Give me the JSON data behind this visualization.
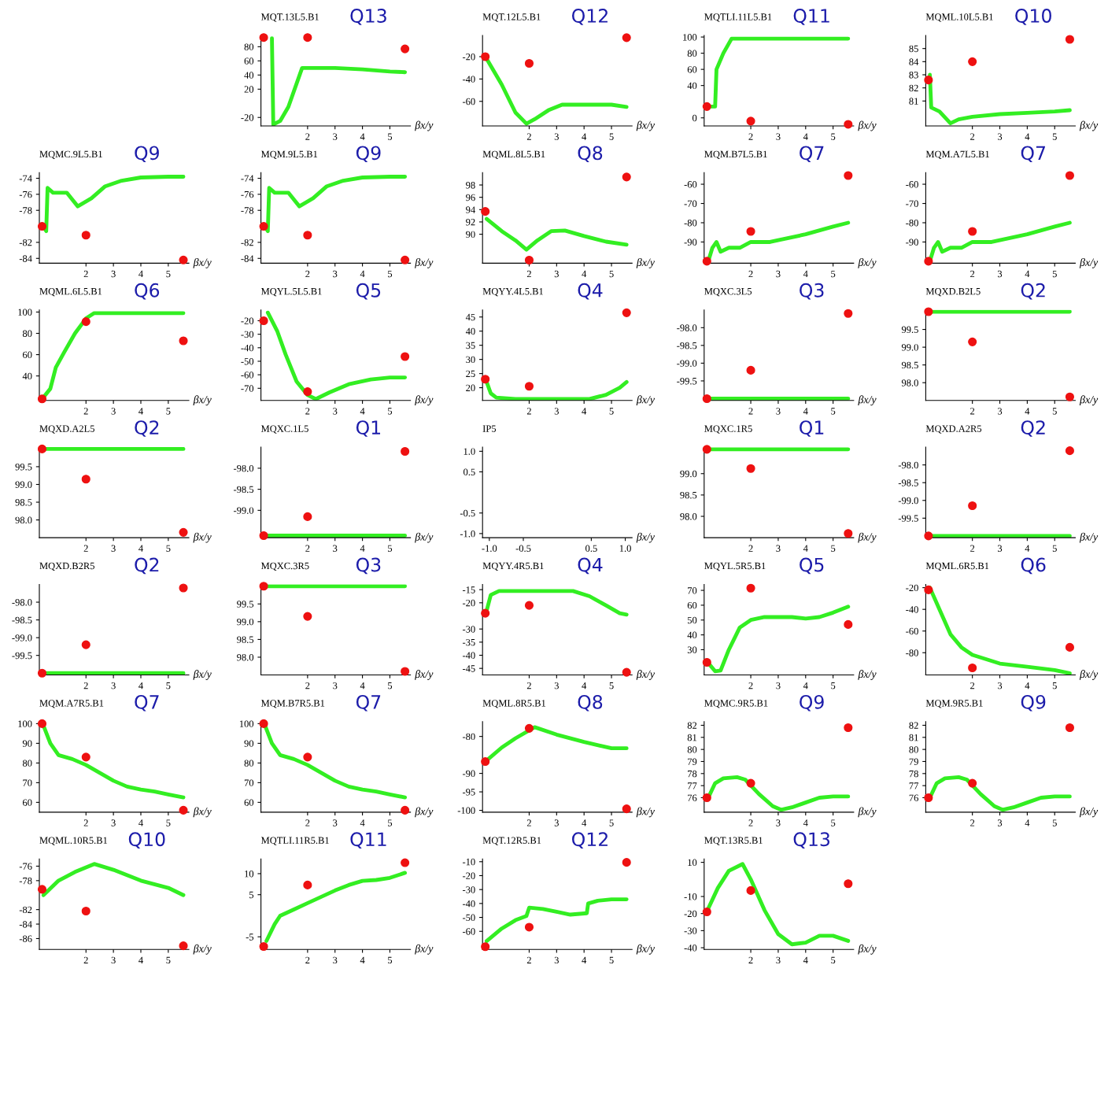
{
  "chart_data": [
    {
      "type": "line",
      "title": "MQT.13L5.B1",
      "subtitle": "Q13",
      "xlabel": "βx/y",
      "xlim": [
        0.3,
        5.75
      ],
      "ylim": [
        -32,
        96
      ],
      "xticks": [
        2,
        3,
        4,
        5
      ],
      "yticks": [
        -20,
        20,
        40,
        60,
        80
      ],
      "series": [
        {
          "color": "#33ee22",
          "x": [
            0.7,
            0.75,
            1,
            1.3,
            1.8,
            2,
            3,
            4,
            5,
            5.55
          ],
          "values": [
            92,
            -30,
            -25,
            -5,
            50,
            50,
            50,
            48,
            45,
            44
          ]
        },
        {
          "type": "scatter",
          "marker": "circle",
          "color": "#ee1111",
          "x": [
            0.4,
            2,
            5.55
          ],
          "values": [
            93,
            93,
            77
          ]
        }
      ]
    },
    {
      "type": "line",
      "title": "MQT.12L5.B1",
      "subtitle": "Q12",
      "xlabel": "βx/y",
      "xlim": [
        0.3,
        5.75
      ],
      "ylim": [
        -82,
        -1
      ],
      "xticks": [
        2,
        3,
        4,
        5
      ],
      "yticks": [
        -20,
        -40,
        -60
      ],
      "series": [
        {
          "color": "#33ee22",
          "x": [
            0.45,
            1,
            1.5,
            1.9,
            2.2,
            2.7,
            3.2,
            4,
            5,
            5.55
          ],
          "values": [
            -22,
            -45,
            -70,
            -80,
            -76,
            -68,
            -63,
            -63,
            -63,
            -65
          ]
        },
        {
          "type": "scatter",
          "marker": "circle",
          "color": "#ee1111",
          "x": [
            0.4,
            2,
            5.55
          ],
          "values": [
            -20,
            -26,
            -3
          ]
        }
      ]
    },
    {
      "type": "line",
      "title": "MQTLI.11L5.B1",
      "subtitle": "Q11",
      "xlabel": "βx/y",
      "xlim": [
        0.3,
        5.75
      ],
      "ylim": [
        -10,
        102
      ],
      "xticks": [
        2,
        3,
        4,
        5
      ],
      "yticks": [
        0,
        40,
        60,
        80,
        100
      ],
      "series": [
        {
          "color": "#33ee22",
          "x": [
            0.45,
            0.7,
            0.75,
            1,
            1.3,
            2,
            3,
            4,
            5,
            5.55
          ],
          "values": [
            14,
            14,
            60,
            80,
            98,
            98,
            98,
            98,
            98,
            98
          ]
        },
        {
          "type": "scatter",
          "marker": "circle",
          "color": "#ee1111",
          "x": [
            0.4,
            2,
            5.55
          ],
          "values": [
            14,
            -4,
            -8
          ]
        }
      ]
    },
    {
      "type": "line",
      "title": "MQML.10L5.B1",
      "subtitle": "Q10",
      "xlabel": "βx/y",
      "xlim": [
        0.3,
        5.75
      ],
      "ylim": [
        79.1,
        86
      ],
      "xticks": [
        2,
        3,
        4,
        5
      ],
      "yticks": [
        81,
        82,
        83,
        84,
        85
      ],
      "series": [
        {
          "color": "#33ee22",
          "x": [
            0.45,
            0.5,
            0.8,
            1.2,
            1.5,
            2,
            3,
            4,
            5,
            5.55
          ],
          "values": [
            83,
            80.5,
            80.2,
            79.3,
            79.6,
            79.8,
            80,
            80.1,
            80.2,
            80.3
          ]
        },
        {
          "type": "scatter",
          "marker": "circle",
          "color": "#ee1111",
          "x": [
            0.4,
            2,
            5.55
          ],
          "values": [
            82.6,
            84,
            85.7
          ]
        }
      ]
    },
    {
      "type": "line",
      "title": "MQMC.9L5.B1",
      "subtitle": "Q9",
      "xlabel": "βx/y",
      "xlim": [
        0.3,
        5.75
      ],
      "ylim": [
        -84.6,
        -73.3
      ],
      "xticks": [
        2,
        3,
        4,
        5
      ],
      "yticks": [
        -74,
        -76,
        -78,
        -82,
        -84
      ],
      "series": [
        {
          "color": "#33ee22",
          "x": [
            0.45,
            0.55,
            0.6,
            0.8,
            1.3,
            1.7,
            2.2,
            2.7,
            3.3,
            4,
            5,
            5.55
          ],
          "values": [
            -80,
            -80.6,
            -75.2,
            -75.8,
            -75.8,
            -77.5,
            -76.5,
            -75,
            -74.3,
            -73.9,
            -73.8,
            -73.8
          ]
        },
        {
          "type": "scatter",
          "marker": "circle",
          "color": "#ee1111",
          "x": [
            0.4,
            2,
            5.55
          ],
          "values": [
            -80,
            -81.1,
            -84.2
          ]
        }
      ]
    },
    {
      "type": "line",
      "title": "MQM.9L5.B1",
      "subtitle": "Q9",
      "xlabel": "βx/y",
      "xlim": [
        0.3,
        5.75
      ],
      "ylim": [
        -84.6,
        -73.3
      ],
      "xticks": [
        2,
        3,
        4,
        5
      ],
      "yticks": [
        -74,
        -76,
        -78,
        -82,
        -84
      ],
      "series": [
        {
          "color": "#33ee22",
          "x": [
            0.45,
            0.55,
            0.6,
            0.8,
            1.3,
            1.7,
            2.2,
            2.7,
            3.3,
            4,
            5,
            5.55
          ],
          "values": [
            -80,
            -80.6,
            -75.2,
            -75.8,
            -75.8,
            -77.5,
            -76.5,
            -75,
            -74.3,
            -73.9,
            -73.8,
            -73.8
          ]
        },
        {
          "type": "scatter",
          "marker": "circle",
          "color": "#ee1111",
          "x": [
            0.4,
            2,
            5.55
          ],
          "values": [
            -80,
            -81.1,
            -84.2
          ]
        }
      ]
    },
    {
      "type": "line",
      "title": "MQML.8L5.B1",
      "subtitle": "Q8",
      "xlabel": "βx/y",
      "xlim": [
        0.3,
        5.75
      ],
      "ylim": [
        85.3,
        100
      ],
      "xticks": [
        2,
        3,
        4,
        5
      ],
      "yticks": [
        90,
        92,
        94,
        96,
        98
      ],
      "series": [
        {
          "color": "#33ee22",
          "x": [
            0.45,
            1,
            1.5,
            1.9,
            2.3,
            2.8,
            3.3,
            4,
            4.8,
            5.55
          ],
          "values": [
            92.5,
            90.5,
            89,
            87.5,
            89,
            90.5,
            90.6,
            89.7,
            88.8,
            88.3
          ]
        },
        {
          "type": "scatter",
          "marker": "circle",
          "color": "#ee1111",
          "x": [
            0.4,
            2,
            5.55
          ],
          "values": [
            93.7,
            85.8,
            99.3
          ]
        }
      ]
    },
    {
      "type": "line",
      "title": "MQM.B7L5.B1",
      "subtitle": "Q7",
      "xlabel": "βx/y",
      "xlim": [
        0.3,
        5.75
      ],
      "ylim": [
        -101,
        -54
      ],
      "xticks": [
        2,
        3,
        4,
        5
      ],
      "yticks": [
        -60,
        -70,
        -80,
        -90
      ],
      "series": [
        {
          "color": "#33ee22",
          "x": [
            0.45,
            0.6,
            0.75,
            0.9,
            1.2,
            1.6,
            2,
            2.7,
            3,
            4,
            5,
            5.55
          ],
          "values": [
            -100,
            -93,
            -90,
            -95,
            -93,
            -93,
            -90,
            -90,
            -89,
            -86,
            -82,
            -80
          ]
        },
        {
          "type": "scatter",
          "marker": "circle",
          "color": "#ee1111",
          "x": [
            0.4,
            2,
            5.55
          ],
          "values": [
            -100,
            -84.5,
            -55.5
          ]
        }
      ]
    },
    {
      "type": "line",
      "title": "MQM.A7L5.B1",
      "subtitle": "Q7",
      "xlabel": "βx/y",
      "xlim": [
        0.3,
        5.75
      ],
      "ylim": [
        -101,
        -54
      ],
      "xticks": [
        2,
        3,
        4,
        5
      ],
      "yticks": [
        -60,
        -70,
        -80,
        -90
      ],
      "series": [
        {
          "color": "#33ee22",
          "x": [
            0.45,
            0.6,
            0.75,
            0.9,
            1.2,
            1.6,
            2,
            2.7,
            3,
            4,
            5,
            5.55
          ],
          "values": [
            -100,
            -93,
            -90,
            -95,
            -93,
            -93,
            -90,
            -90,
            -89,
            -86,
            -82,
            -80
          ]
        },
        {
          "type": "scatter",
          "marker": "circle",
          "color": "#ee1111",
          "x": [
            0.4,
            2,
            5.55
          ],
          "values": [
            -100,
            -84.5,
            -55.5
          ]
        }
      ]
    },
    {
      "type": "line",
      "title": "MQML.6L5.B1",
      "subtitle": "Q6",
      "xlabel": "βx/y",
      "xlim": [
        0.3,
        5.75
      ],
      "ylim": [
        17,
        102
      ],
      "xticks": [
        2,
        3,
        4,
        5
      ],
      "yticks": [
        40,
        60,
        80,
        100
      ],
      "series": [
        {
          "color": "#33ee22",
          "x": [
            0.45,
            0.7,
            0.9,
            1.2,
            1.6,
            2,
            2.3,
            3,
            4,
            5,
            5.55
          ],
          "values": [
            20,
            28,
            48,
            62,
            80,
            94,
            99,
            99,
            99,
            99,
            99
          ]
        },
        {
          "type": "scatter",
          "marker": "circle",
          "color": "#ee1111",
          "x": [
            0.4,
            2,
            5.55
          ],
          "values": [
            18.5,
            91,
            73
          ]
        }
      ]
    },
    {
      "type": "line",
      "title": "MQYL.5L5.B1",
      "subtitle": "Q5",
      "xlabel": "βx/y",
      "xlim": [
        0.3,
        5.75
      ],
      "ylim": [
        -79,
        -12
      ],
      "xticks": [
        2,
        3,
        4,
        5
      ],
      "yticks": [
        -20,
        -30,
        -40,
        -50,
        -60,
        -70
      ],
      "series": [
        {
          "color": "#33ee22",
          "x": [
            0.55,
            0.9,
            1.2,
            1.6,
            2,
            2.3,
            2.8,
            3.5,
            4.3,
            5,
            5.55
          ],
          "values": [
            -14,
            -28,
            -45,
            -65,
            -75,
            -78,
            -73,
            -67,
            -63.5,
            -62,
            -62
          ]
        },
        {
          "type": "scatter",
          "marker": "circle",
          "color": "#ee1111",
          "x": [
            0.4,
            2,
            5.55
          ],
          "values": [
            -20,
            -72.5,
            -46.5
          ]
        }
      ]
    },
    {
      "type": "line",
      "title": "MQYY.4L5.B1",
      "subtitle": "Q4",
      "xlabel": "βx/y",
      "xlim": [
        0.3,
        5.75
      ],
      "ylim": [
        15.5,
        47.5
      ],
      "xticks": [
        2,
        3,
        4,
        5
      ],
      "yticks": [
        20,
        25,
        30,
        35,
        40,
        45
      ],
      "series": [
        {
          "color": "#33ee22",
          "x": [
            0.45,
            0.6,
            0.8,
            1.5,
            4.2,
            4.8,
            5.3,
            5.55
          ],
          "values": [
            22,
            18,
            16.5,
            16,
            16,
            17.5,
            20,
            22
          ]
        },
        {
          "type": "scatter",
          "marker": "circle",
          "color": "#ee1111",
          "x": [
            0.4,
            2,
            5.55
          ],
          "values": [
            23,
            20.5,
            46.5
          ]
        }
      ]
    },
    {
      "type": "line",
      "title": "MQXC.3L5",
      "subtitle": "Q3",
      "xlabel": "βx/y",
      "xlim": [
        0.3,
        5.75
      ],
      "ylim": [
        -100.05,
        -97.5
      ],
      "xticks": [
        2,
        3,
        4,
        5
      ],
      "yticks": [
        {
          "value": -98,
          "label": "-98.0"
        },
        -98.5,
        {
          "value": -99,
          "label": "-99.0"
        },
        -99.5
      ],
      "series": [
        {
          "color": "#33ee22",
          "x": [
            0.45,
            5.55
          ],
          "values": [
            -100,
            -100
          ]
        },
        {
          "type": "scatter",
          "marker": "circle",
          "color": "#ee1111",
          "x": [
            0.4,
            2,
            5.55
          ],
          "values": [
            -100,
            -99.2,
            -97.6
          ]
        }
      ]
    },
    {
      "type": "line",
      "title": "MQXD.B2L5",
      "subtitle": "Q2",
      "xlabel": "βx/y",
      "xlim": [
        0.3,
        5.75
      ],
      "ylim": [
        97.5,
        100.05
      ],
      "xticks": [
        2,
        3,
        4,
        5
      ],
      "yticks": [
        99.5,
        {
          "value": 99,
          "label": "99.0"
        },
        98.5,
        {
          "value": 98,
          "label": "98.0"
        }
      ],
      "series": [
        {
          "color": "#33ee22",
          "x": [
            0.45,
            5.55
          ],
          "values": [
            100,
            100
          ]
        },
        {
          "type": "scatter",
          "marker": "circle",
          "color": "#ee1111",
          "x": [
            0.4,
            2,
            5.55
          ],
          "values": [
            100,
            99.15,
            97.6
          ]
        }
      ]
    },
    {
      "type": "line",
      "title": "MQXD.A2L5",
      "subtitle": "Q2",
      "xlabel": "βx/y",
      "xlim": [
        0.3,
        5.75
      ],
      "ylim": [
        97.5,
        100.05
      ],
      "xticks": [
        2,
        3,
        4,
        5
      ],
      "yticks": [
        99.5,
        {
          "value": 99,
          "label": "99.0"
        },
        98.5,
        {
          "value": 98,
          "label": "98.0"
        }
      ],
      "series": [
        {
          "color": "#33ee22",
          "x": [
            0.45,
            5.55
          ],
          "values": [
            100,
            100
          ]
        },
        {
          "type": "scatter",
          "marker": "circle",
          "color": "#ee1111",
          "x": [
            0.4,
            2,
            5.55
          ],
          "values": [
            100,
            99.15,
            97.65
          ]
        }
      ]
    },
    {
      "type": "line",
      "title": "MQXC.1L5",
      "subtitle": "Q1",
      "xlabel": "βx/y",
      "xlim": [
        0.3,
        5.75
      ],
      "ylim": [
        -99.65,
        -97.5
      ],
      "xticks": [
        2,
        3,
        4,
        5
      ],
      "yticks": [
        {
          "value": -98,
          "label": "-98.0"
        },
        -98.5,
        {
          "value": -99,
          "label": "-99.0"
        }
      ],
      "series": [
        {
          "color": "#33ee22",
          "x": [
            0.45,
            5.55
          ],
          "values": [
            -99.6,
            -99.6
          ]
        },
        {
          "type": "scatter",
          "marker": "circle",
          "color": "#ee1111",
          "x": [
            0.4,
            2,
            5.55
          ],
          "values": [
            -99.6,
            -99.15,
            -97.6
          ]
        }
      ]
    },
    {
      "type": "line",
      "title": "IP5",
      "xlabel": "βx/y",
      "xlim": [
        -1.1,
        1.1
      ],
      "ylim": [
        -1.1,
        1.1
      ],
      "xticks": [
        {
          "value": -1,
          "label": "-1.0"
        },
        -0.5,
        0.5,
        {
          "value": 1,
          "label": "1.0"
        }
      ],
      "yticks": [
        {
          "value": 1,
          "label": "1.0"
        },
        0.5,
        -0.5,
        {
          "value": -1,
          "label": "-1.0"
        }
      ]
    },
    {
      "type": "line",
      "title": "MQXC.1R5",
      "subtitle": "Q1",
      "xlabel": "βx/y",
      "xlim": [
        0.3,
        5.75
      ],
      "ylim": [
        97.5,
        99.62
      ],
      "xticks": [
        2,
        3,
        4,
        5
      ],
      "yticks": [
        {
          "value": 99,
          "label": "99.0"
        },
        98.5,
        {
          "value": 98,
          "label": "98.0"
        }
      ],
      "series": [
        {
          "color": "#33ee22",
          "x": [
            0.45,
            5.55
          ],
          "values": [
            99.57,
            99.57
          ]
        },
        {
          "type": "scatter",
          "marker": "circle",
          "color": "#ee1111",
          "x": [
            0.4,
            2,
            5.55
          ],
          "values": [
            99.57,
            99.12,
            97.6
          ]
        }
      ]
    },
    {
      "type": "line",
      "title": "MQXD.A2R5",
      "subtitle": "Q2",
      "xlabel": "βx/y",
      "xlim": [
        0.3,
        5.75
      ],
      "ylim": [
        -100.05,
        -97.5
      ],
      "xticks": [
        2,
        3,
        4,
        5
      ],
      "yticks": [
        {
          "value": -98,
          "label": "-98.0"
        },
        -98.5,
        {
          "value": -99,
          "label": "-99.0"
        },
        -99.5
      ],
      "series": [
        {
          "color": "#33ee22",
          "x": [
            0.45,
            5.55
          ],
          "values": [
            -100,
            -100
          ]
        },
        {
          "type": "scatter",
          "marker": "circle",
          "color": "#ee1111",
          "x": [
            0.4,
            2,
            5.55
          ],
          "values": [
            -100,
            -99.15,
            -97.6
          ]
        }
      ]
    },
    {
      "type": "line",
      "title": "MQXD.B2R5",
      "subtitle": "Q2",
      "xlabel": "βx/y",
      "xlim": [
        0.3,
        5.75
      ],
      "ylim": [
        -100.05,
        -97.5
      ],
      "xticks": [
        2,
        3,
        4,
        5
      ],
      "yticks": [
        {
          "value": -98,
          "label": "-98.0"
        },
        -98.5,
        {
          "value": -99,
          "label": "-99.0"
        },
        -99.5
      ],
      "series": [
        {
          "color": "#33ee22",
          "x": [
            0.45,
            5.55
          ],
          "values": [
            -100,
            -100
          ]
        },
        {
          "type": "scatter",
          "marker": "circle",
          "color": "#ee1111",
          "x": [
            0.4,
            2,
            5.55
          ],
          "values": [
            -100,
            -99.2,
            -97.6
          ]
        }
      ]
    },
    {
      "type": "line",
      "title": "MQXC.3R5",
      "subtitle": "Q3",
      "xlabel": "βx/y",
      "xlim": [
        0.3,
        5.75
      ],
      "ylim": [
        97.5,
        100.05
      ],
      "xticks": [
        2,
        3,
        4,
        5
      ],
      "yticks": [
        99.5,
        {
          "value": 99,
          "label": "99.0"
        },
        98.5,
        {
          "value": 98,
          "label": "98.0"
        }
      ],
      "series": [
        {
          "color": "#33ee22",
          "x": [
            0.45,
            5.55
          ],
          "values": [
            100,
            100
          ]
        },
        {
          "type": "scatter",
          "marker": "circle",
          "color": "#ee1111",
          "x": [
            0.4,
            2,
            5.55
          ],
          "values": [
            100,
            99.15,
            97.6
          ]
        }
      ]
    },
    {
      "type": "line",
      "title": "MQYY.4R5.B1",
      "subtitle": "Q4",
      "xlabel": "βx/y",
      "xlim": [
        0.3,
        5.75
      ],
      "ylim": [
        -47.5,
        -13
      ],
      "xticks": [
        2,
        3,
        4,
        5
      ],
      "yticks": [
        -15,
        -20,
        -30,
        -35,
        -40,
        -45
      ],
      "series": [
        {
          "color": "#33ee22",
          "x": [
            0.45,
            0.6,
            0.9,
            2,
            3.6,
            4.2,
            4.8,
            5.3,
            5.55
          ],
          "values": [
            -23,
            -17,
            -15.5,
            -15.5,
            -15.5,
            -17.5,
            -21,
            -24,
            -24.5
          ]
        },
        {
          "type": "scatter",
          "marker": "circle",
          "color": "#ee1111",
          "x": [
            0.4,
            2,
            5.55
          ],
          "values": [
            -24,
            -21,
            -46.5
          ]
        }
      ]
    },
    {
      "type": "line",
      "title": "MQYL.5R5.B1",
      "subtitle": "Q5",
      "xlabel": "βx/y",
      "xlim": [
        0.3,
        5.75
      ],
      "ylim": [
        13,
        74
      ],
      "xticks": [
        2,
        3,
        4,
        5
      ],
      "yticks": [
        30,
        40,
        50,
        60,
        70
      ],
      "series": [
        {
          "color": "#33ee22",
          "x": [
            0.45,
            0.7,
            0.9,
            1.2,
            1.6,
            2,
            2.5,
            3.5,
            4,
            4.5,
            5,
            5.55
          ],
          "values": [
            21,
            15.5,
            16,
            30,
            45,
            50,
            52,
            52,
            51,
            52,
            55,
            59
          ]
        },
        {
          "type": "scatter",
          "marker": "circle",
          "color": "#ee1111",
          "x": [
            0.4,
            2,
            5.55
          ],
          "values": [
            21.5,
            71.5,
            47
          ]
        }
      ]
    },
    {
      "type": "line",
      "title": "MQML.6R5.B1",
      "subtitle": "Q6",
      "xlabel": "βx/y",
      "xlim": [
        0.3,
        5.75
      ],
      "ylim": [
        -100.5,
        -17
      ],
      "xticks": [
        2,
        3,
        4,
        5
      ],
      "yticks": [
        -20,
        -40,
        -60,
        -80
      ],
      "series": [
        {
          "color": "#33ee22",
          "x": [
            0.45,
            0.8,
            1.2,
            1.6,
            2,
            2.5,
            3,
            4,
            5,
            5.55
          ],
          "values": [
            -20,
            -40,
            -63,
            -75,
            -82,
            -86,
            -90,
            -93,
            -96,
            -99
          ]
        },
        {
          "type": "scatter",
          "marker": "circle",
          "color": "#ee1111",
          "x": [
            0.4,
            2,
            5.55
          ],
          "values": [
            -22,
            -94,
            -75
          ]
        }
      ]
    },
    {
      "type": "line",
      "title": "MQM.A7R5.B1",
      "subtitle": "Q7",
      "xlabel": "βx/y",
      "xlim": [
        0.3,
        5.75
      ],
      "ylim": [
        55,
        101
      ],
      "xticks": [
        2,
        3,
        4,
        5
      ],
      "yticks": [
        60,
        70,
        80,
        90,
        100
      ],
      "series": [
        {
          "color": "#33ee22",
          "x": [
            0.45,
            0.7,
            1,
            1.5,
            2,
            2.5,
            3,
            3.5,
            4,
            4.5,
            5,
            5.55
          ],
          "values": [
            99,
            90,
            84,
            82,
            79,
            75,
            71,
            68,
            66.5,
            65.5,
            64,
            62.5
          ]
        },
        {
          "type": "scatter",
          "marker": "circle",
          "color": "#ee1111",
          "x": [
            0.4,
            2,
            5.55
          ],
          "values": [
            100,
            83,
            56
          ]
        }
      ]
    },
    {
      "type": "line",
      "title": "MQM.B7R5.B1",
      "subtitle": "Q7",
      "xlabel": "βx/y",
      "xlim": [
        0.3,
        5.75
      ],
      "ylim": [
        55,
        101
      ],
      "xticks": [
        2,
        3,
        4,
        5
      ],
      "yticks": [
        60,
        70,
        80,
        90,
        100
      ],
      "series": [
        {
          "color": "#33ee22",
          "x": [
            0.45,
            0.7,
            1,
            1.5,
            2,
            2.5,
            3,
            3.5,
            4,
            4.5,
            5,
            5.55
          ],
          "values": [
            99,
            90,
            84,
            82,
            79,
            75,
            71,
            68,
            66.5,
            65.5,
            64,
            62.5
          ]
        },
        {
          "type": "scatter",
          "marker": "circle",
          "color": "#ee1111",
          "x": [
            0.4,
            2,
            5.55
          ],
          "values": [
            100,
            83,
            56
          ]
        }
      ]
    },
    {
      "type": "line",
      "title": "MQML.8R5.B1",
      "subtitle": "Q8",
      "xlabel": "βx/y",
      "xlim": [
        0.3,
        5.75
      ],
      "ylim": [
        -100.5,
        -76
      ],
      "xticks": [
        2,
        3,
        4,
        5
      ],
      "yticks": [
        -80,
        -90,
        -95,
        -100
      ],
      "series": [
        {
          "color": "#33ee22",
          "x": [
            0.45,
            1,
            1.5,
            2.2,
            3,
            4,
            5,
            5.55
          ],
          "values": [
            -86.5,
            -83,
            -80.5,
            -77.5,
            -79.5,
            -81.5,
            -83.2,
            -83.2
          ]
        },
        {
          "type": "scatter",
          "marker": "circle",
          "color": "#ee1111",
          "x": [
            0.4,
            2,
            5.55
          ],
          "values": [
            -86.8,
            -77.8,
            -99.6
          ]
        }
      ]
    },
    {
      "type": "line",
      "title": "MQMC.9R5.B1",
      "subtitle": "Q9",
      "xlabel": "βx/y",
      "xlim": [
        0.3,
        5.75
      ],
      "ylim": [
        74.8,
        82.3
      ],
      "xticks": [
        2,
        3,
        4,
        5
      ],
      "yticks": [
        76,
        77,
        78,
        79,
        80,
        81,
        82
      ],
      "series": [
        {
          "color": "#33ee22",
          "x": [
            0.45,
            0.7,
            1,
            1.5,
            1.8,
            2.3,
            2.8,
            3.1,
            3.5,
            4,
            4.5,
            5,
            5.55
          ],
          "values": [
            76,
            77.2,
            77.6,
            77.7,
            77.5,
            76.3,
            75.3,
            75,
            75.2,
            75.6,
            76,
            76.1,
            76.1
          ]
        },
        {
          "type": "scatter",
          "marker": "circle",
          "color": "#ee1111",
          "x": [
            0.4,
            2,
            5.55
          ],
          "values": [
            76,
            77.2,
            81.8
          ]
        }
      ]
    },
    {
      "type": "line",
      "title": "MQM.9R5.B1",
      "subtitle": "Q9",
      "xlabel": "βx/y",
      "xlim": [
        0.3,
        5.75
      ],
      "ylim": [
        74.8,
        82.3
      ],
      "xticks": [
        2,
        3,
        4,
        5
      ],
      "yticks": [
        76,
        77,
        78,
        79,
        80,
        81,
        82
      ],
      "series": [
        {
          "color": "#33ee22",
          "x": [
            0.45,
            0.7,
            1,
            1.5,
            1.8,
            2.3,
            2.8,
            3.1,
            3.5,
            4,
            4.5,
            5,
            5.55
          ],
          "values": [
            76,
            77.2,
            77.6,
            77.7,
            77.5,
            76.3,
            75.3,
            75,
            75.2,
            75.6,
            76,
            76.1,
            76.1
          ]
        },
        {
          "type": "scatter",
          "marker": "circle",
          "color": "#ee1111",
          "x": [
            0.4,
            2,
            5.55
          ],
          "values": [
            76,
            77.2,
            81.8
          ]
        }
      ]
    },
    {
      "type": "line",
      "title": "MQML.10R5.B1",
      "subtitle": "Q10",
      "xlabel": "βx/y",
      "xlim": [
        0.3,
        5.75
      ],
      "ylim": [
        -87.5,
        -75
      ],
      "xticks": [
        2,
        3,
        4,
        5
      ],
      "yticks": [
        -76,
        -78,
        -82,
        -84,
        -86
      ],
      "series": [
        {
          "color": "#33ee22",
          "x": [
            0.45,
            1,
            1.6,
            2.3,
            3,
            4,
            5,
            5.55
          ],
          "values": [
            -80,
            -78,
            -76.8,
            -75.7,
            -76.5,
            -78,
            -79,
            -80
          ]
        },
        {
          "type": "scatter",
          "marker": "circle",
          "color": "#ee1111",
          "x": [
            0.4,
            2,
            5.55
          ],
          "values": [
            -79.2,
            -82.2,
            -87
          ]
        }
      ]
    },
    {
      "type": "line",
      "title": "MQTLI.11R5.B1",
      "subtitle": "Q11",
      "xlabel": "βx/y",
      "xlim": [
        0.3,
        5.75
      ],
      "ylim": [
        -8,
        13.5
      ],
      "xticks": [
        2,
        3,
        4,
        5
      ],
      "yticks": [
        10,
        5,
        -5
      ],
      "series": [
        {
          "color": "#33ee22",
          "x": [
            0.5,
            0.8,
            1,
            1.5,
            2,
            2.5,
            3,
            3.5,
            4,
            4.5,
            5,
            5.55
          ],
          "values": [
            -6,
            -2,
            0,
            1.5,
            3,
            4.5,
            6,
            7.3,
            8.3,
            8.5,
            9,
            10.2
          ]
        },
        {
          "type": "scatter",
          "marker": "circle",
          "color": "#ee1111",
          "x": [
            0.4,
            2,
            5.55
          ],
          "values": [
            -7.3,
            7.3,
            12.6
          ]
        }
      ]
    },
    {
      "type": "line",
      "title": "MQT.12R5.B1",
      "subtitle": "Q12",
      "xlabel": "βx/y",
      "xlim": [
        0.3,
        5.75
      ],
      "ylim": [
        -73,
        -8
      ],
      "xticks": [
        2,
        3,
        4,
        5
      ],
      "yticks": [
        -10,
        -20,
        -30,
        -40,
        -50,
        -60
      ],
      "series": [
        {
          "color": "#33ee22",
          "x": [
            0.45,
            1,
            1.5,
            1.9,
            2,
            2.5,
            3,
            3.5,
            4.1,
            4.15,
            4.5,
            5,
            5.55
          ],
          "values": [
            -67,
            -58,
            -52,
            -49,
            -43,
            -44,
            -46,
            -48,
            -47,
            -40,
            -38,
            -37,
            -37
          ]
        },
        {
          "type": "scatter",
          "marker": "circle",
          "color": "#ee1111",
          "x": [
            0.4,
            2,
            5.55
          ],
          "values": [
            -71,
            -57,
            -10.5
          ]
        }
      ]
    },
    {
      "type": "line",
      "title": "MQT.13R5.B1",
      "subtitle": "Q13",
      "xlabel": "βx/y",
      "xlim": [
        0.3,
        5.75
      ],
      "ylim": [
        -41,
        12
      ],
      "xticks": [
        2,
        3,
        4,
        5
      ],
      "yticks": [
        10,
        -10,
        -20,
        -30,
        -40
      ],
      "series": [
        {
          "color": "#33ee22",
          "x": [
            0.45,
            0.8,
            1.2,
            1.7,
            2,
            2.5,
            3,
            3.5,
            4,
            4.5,
            5,
            5.55
          ],
          "values": [
            -17,
            -5,
            5,
            9,
            0,
            -18,
            -32,
            -38,
            -37,
            -33,
            -33,
            -36
          ]
        },
        {
          "type": "scatter",
          "marker": "circle",
          "color": "#ee1111",
          "x": [
            0.4,
            2,
            5.55
          ],
          "values": [
            -19,
            -6.5,
            -2.5
          ]
        }
      ]
    }
  ]
}
